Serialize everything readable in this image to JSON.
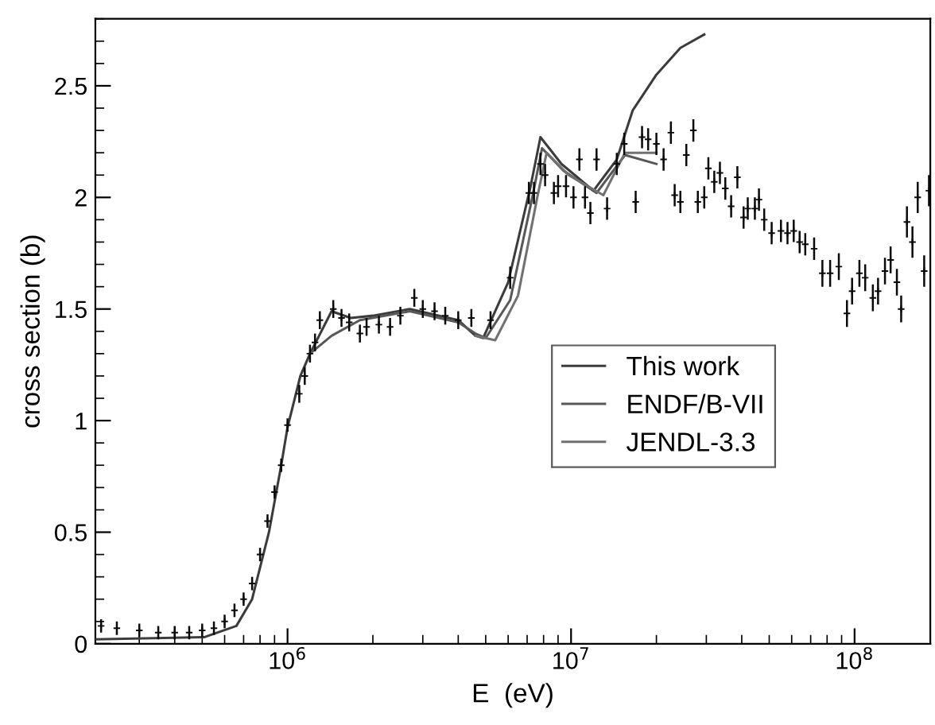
{
  "chart_data": {
    "type": "line",
    "xlabel": "E  (eV)",
    "ylabel": "cross section (b)",
    "log": "x",
    "xlim": [
      210000,
      185000000
    ],
    "xticks": [
      {
        "value": 1000000,
        "label": "10$^{6}$"
      },
      {
        "value": 10000000,
        "label": "10$^{7}$"
      },
      {
        "value": 100000000,
        "label": "10$^{8}$"
      }
    ],
    "ylim": [
      0,
      2.8
    ],
    "yticks": [
      0,
      0.5,
      1,
      1.5,
      2,
      2.5
    ],
    "grid": false,
    "legend": "center right",
    "marker": "none",
    "line_style": "solid",
    "series": [
      {
        "name": "This work",
        "color": "#3c3c3c",
        "x": [
          210000,
          510000,
          660000,
          750000,
          860000,
          950000,
          1000000,
          1110000,
          1200000,
          1430000,
          1670000,
          2000000,
          2700000,
          4000000,
          4600000,
          4900000,
          6000000,
          7200000,
          7800000,
          9250000,
          12000000,
          14500000,
          16500000,
          20000000,
          24300000,
          29500000
        ],
        "values": [
          0.02,
          0.03,
          0.08,
          0.2,
          0.5,
          0.8,
          0.97,
          1.2,
          1.3,
          1.49,
          1.46,
          1.47,
          1.5,
          1.45,
          1.38,
          1.37,
          1.62,
          2.05,
          2.27,
          2.15,
          2.03,
          2.17,
          2.39,
          2.55,
          2.67,
          2.73
        ]
      },
      {
        "name": "ENDF/B-VII",
        "color": "#585858",
        "x": [
          1200000,
          1430000,
          1800000,
          2700000,
          4000000,
          4600000,
          5000000,
          6100000,
          7300000,
          7900000,
          9400000,
          12300000,
          15500000,
          20000000
        ],
        "values": [
          1.3,
          1.38,
          1.45,
          1.49,
          1.44,
          1.39,
          1.37,
          1.54,
          2.0,
          2.22,
          2.12,
          2.02,
          2.19,
          2.15
        ]
      },
      {
        "name": "JENDL-3.3",
        "color": "#717171",
        "x": [
          4600000,
          5400000,
          6500000,
          7600000,
          8200000,
          9800000,
          13000000,
          15500000,
          20000000
        ],
        "values": [
          1.38,
          1.36,
          1.56,
          2.0,
          2.2,
          2.1,
          2.01,
          2.2,
          2.2
        ]
      },
      {
        "type": "scatter",
        "color": "#0a0a0a",
        "marker": "cross",
        "x": [
          220000,
          250000,
          300000,
          350000,
          400000,
          450000,
          500000,
          550000,
          600000,
          650000,
          700000,
          750000,
          800000,
          850000,
          900000,
          950000,
          1000000,
          1100000,
          1150000,
          1200000,
          1250000,
          1300000,
          1450000,
          1550000,
          1650000,
          1800000,
          1900000,
          2100000,
          2300000,
          2500000,
          2800000,
          3000000,
          3300000,
          3600000,
          4000000,
          4450000,
          5200000,
          6100000,
          7100000,
          7400000,
          7800000,
          8100000,
          8700000,
          9000000,
          9600000,
          10200000,
          10700000,
          11200000,
          11700000,
          12300000,
          13400000,
          14500000,
          15400000,
          16900000,
          17800000,
          18700000,
          20000000,
          21200000,
          22500000,
          23200000,
          24300000,
          25500000,
          27000000,
          28000000,
          29500000,
          30500000,
          32000000,
          33500000,
          35000000,
          36700000,
          38600000,
          40600000,
          42000000,
          44500000,
          46000000,
          48000000,
          51000000,
          55000000,
          58000000,
          61000000,
          64000000,
          67000000,
          72000000,
          77000000,
          82000000,
          88000000,
          94000000,
          98000000,
          104000000,
          109000000,
          116000000,
          121000000,
          128000000,
          134000000,
          141000000,
          146000000,
          153000000,
          160000000,
          167000000,
          176000000,
          183000000
        ],
        "values": [
          0.08,
          0.07,
          0.06,
          0.05,
          0.05,
          0.05,
          0.06,
          0.07,
          0.1,
          0.15,
          0.2,
          0.27,
          0.4,
          0.55,
          0.68,
          0.8,
          0.98,
          1.12,
          1.2,
          1.3,
          1.35,
          1.45,
          1.5,
          1.46,
          1.44,
          1.39,
          1.42,
          1.43,
          1.42,
          1.47,
          1.55,
          1.5,
          1.49,
          1.47,
          1.45,
          1.46,
          1.45,
          1.64,
          2.02,
          2.02,
          2.15,
          2.1,
          2.02,
          2.05,
          2.05,
          2.0,
          2.17,
          2.0,
          1.93,
          2.17,
          1.95,
          2.15,
          2.24,
          1.98,
          2.27,
          2.26,
          2.24,
          2.17,
          2.29,
          2.01,
          1.98,
          2.19,
          2.3,
          1.98,
          2.0,
          2.13,
          2.07,
          2.11,
          2.04,
          1.96,
          2.09,
          1.91,
          1.95,
          1.95,
          1.99,
          1.9,
          1.84,
          1.85,
          1.84,
          1.85,
          1.8,
          1.79,
          1.77,
          1.66,
          1.66,
          1.69,
          1.48,
          1.58,
          1.66,
          1.64,
          1.55,
          1.58,
          1.67,
          1.72,
          1.62,
          1.5,
          1.89,
          1.8,
          2.0,
          1.67,
          2.03
        ],
        "errors": [
          0.03,
          0.03,
          0.03,
          0.03,
          0.03,
          0.03,
          0.03,
          0.03,
          0.03,
          0.03,
          0.03,
          0.03,
          0.03,
          0.03,
          0.03,
          0.03,
          0.03,
          0.04,
          0.04,
          0.04,
          0.04,
          0.04,
          0.04,
          0.04,
          0.04,
          0.04,
          0.04,
          0.04,
          0.04,
          0.04,
          0.04,
          0.04,
          0.04,
          0.04,
          0.04,
          0.04,
          0.04,
          0.05,
          0.05,
          0.05,
          0.05,
          0.05,
          0.05,
          0.05,
          0.05,
          0.05,
          0.05,
          0.05,
          0.05,
          0.05,
          0.05,
          0.05,
          0.05,
          0.05,
          0.05,
          0.05,
          0.05,
          0.05,
          0.05,
          0.05,
          0.05,
          0.05,
          0.05,
          0.05,
          0.05,
          0.05,
          0.05,
          0.05,
          0.05,
          0.05,
          0.05,
          0.05,
          0.05,
          0.05,
          0.05,
          0.05,
          0.05,
          0.05,
          0.05,
          0.05,
          0.05,
          0.05,
          0.05,
          0.06,
          0.06,
          0.06,
          0.06,
          0.06,
          0.06,
          0.06,
          0.06,
          0.06,
          0.06,
          0.06,
          0.06,
          0.06,
          0.07,
          0.07,
          0.07,
          0.07,
          0.07
        ]
      }
    ]
  }
}
